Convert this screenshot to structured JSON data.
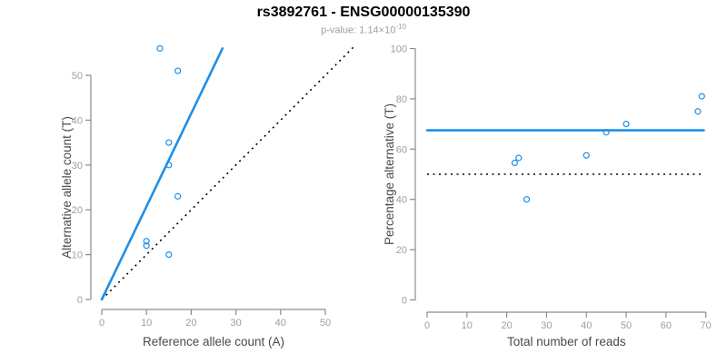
{
  "header": {
    "title": "rs3892761 - ENSG00000135390",
    "pvalue_label": "p-value: 1.14×10",
    "pvalue_exponent": "-10"
  },
  "palette": {
    "accent_blue": "#1E8FE8",
    "dotted_black": "#000000",
    "axis_gray": "#8C8C8C",
    "tick_label_gray": "#9E9E9E",
    "axis_title_gray": "#4A4A4A"
  },
  "chart_data": [
    {
      "name": "allele-count-scatter",
      "type": "scatter",
      "xlabel": "Reference allele count (A)",
      "ylabel": "Alternative allele count (T)",
      "xlim": [
        0,
        50
      ],
      "ylim": [
        0,
        50
      ],
      "xticks": [
        0,
        10,
        20,
        30,
        40,
        50
      ],
      "yticks": [
        0,
        10,
        20,
        30,
        40,
        50
      ],
      "grid": false,
      "legend": false,
      "points": [
        [
          10,
          12
        ],
        [
          10,
          13
        ],
        [
          13,
          56
        ],
        [
          15,
          10
        ],
        [
          15,
          30
        ],
        [
          15,
          35
        ],
        [
          17,
          23
        ],
        [
          17,
          51
        ]
      ],
      "lines": [
        {
          "name": "identity-line",
          "style": "dotted",
          "color": "#000000",
          "x1": 0,
          "y1": 0,
          "x2": 56.5,
          "y2": 56.5
        },
        {
          "name": "regression-line",
          "style": "solid",
          "color": "#1E8FE8",
          "x1": 0,
          "y1": 0,
          "x2": 27,
          "y2": 56
        }
      ]
    },
    {
      "name": "percentage-scatter",
      "type": "scatter",
      "xlabel": "Total number of reads",
      "ylabel": "Percentage alternative (T)",
      "xlim": [
        0,
        70
      ],
      "ylim": [
        0,
        100
      ],
      "xticks": [
        0,
        10,
        20,
        30,
        40,
        50,
        60,
        70
      ],
      "yticks": [
        0,
        20,
        40,
        60,
        80,
        100
      ],
      "grid": false,
      "legend": false,
      "points": [
        [
          22,
          54.5
        ],
        [
          23,
          56.5
        ],
        [
          25,
          40
        ],
        [
          40,
          57.5
        ],
        [
          45,
          66.7
        ],
        [
          50,
          70
        ],
        [
          68,
          75
        ],
        [
          69,
          81
        ]
      ],
      "lines": [
        {
          "name": "fifty-percent-line",
          "style": "dotted",
          "color": "#000000",
          "x1": 0,
          "y1": 50,
          "x2": 69.5,
          "y2": 50
        },
        {
          "name": "mean-percentage-line",
          "style": "solid",
          "color": "#1E8FE8",
          "x1": 0,
          "y1": 67.5,
          "x2": 69.5,
          "y2": 67.5
        }
      ]
    }
  ]
}
